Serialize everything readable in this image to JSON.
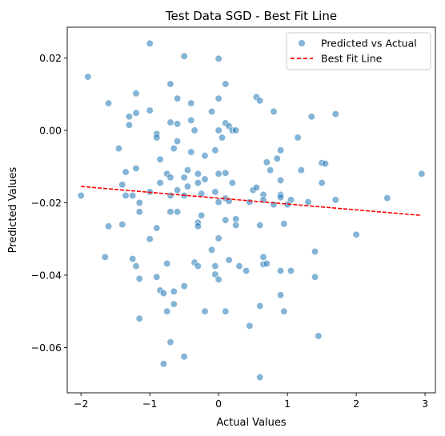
{
  "chart_data": {
    "type": "scatter",
    "title": "Test Data SGD - Best Fit Line",
    "xlabel": "Actual Values",
    "ylabel": "Predicted Values",
    "xlim": [
      -2.2,
      3.15
    ],
    "ylim": [
      -0.0725,
      0.0285
    ],
    "x_ticks": [
      -2,
      -1,
      0,
      1,
      2,
      3
    ],
    "x_tick_labels": [
      "−2",
      "−1",
      "0",
      "1",
      "2",
      "3"
    ],
    "y_ticks": [
      -0.06,
      -0.04,
      -0.02,
      0.0,
      0.02
    ],
    "y_tick_labels": [
      "−0.06",
      "−0.04",
      "−0.02",
      "0.00",
      "0.02"
    ],
    "grid": false,
    "legend_position": "top-right",
    "colors": {
      "scatter": "#1f77b4",
      "scatter_edge": "#ffffff",
      "line": "#ff0000"
    },
    "series": [
      {
        "name": "Predicted vs Actual",
        "kind": "scatter",
        "points": [
          [
            -1.0,
            0.024
          ],
          [
            -0.5,
            0.0205
          ],
          [
            0.0,
            0.0198
          ],
          [
            -1.9,
            0.0148
          ],
          [
            0.1,
            0.0128
          ],
          [
            -0.7,
            0.0128
          ],
          [
            -1.2,
            0.0102
          ],
          [
            -0.6,
            0.0088
          ],
          [
            0.0,
            0.0088
          ],
          [
            0.55,
            0.0092
          ],
          [
            0.6,
            0.0082
          ],
          [
            -1.6,
            0.0075
          ],
          [
            -0.4,
            0.0075
          ],
          [
            -0.1,
            0.0052
          ],
          [
            0.8,
            0.0052
          ],
          [
            1.35,
            0.0038
          ],
          [
            1.7,
            0.0045
          ],
          [
            -1.0,
            0.0055
          ],
          [
            -1.2,
            0.0048
          ],
          [
            -1.3,
            0.0038
          ],
          [
            -0.4,
            0.0028
          ],
          [
            -0.7,
            0.0022
          ],
          [
            -0.6,
            0.0018
          ],
          [
            0.1,
            0.002
          ],
          [
            0.15,
            0.0012
          ],
          [
            -1.3,
            0.0015
          ],
          [
            -0.35,
            0.0
          ],
          [
            0.0,
            0.0
          ],
          [
            0.2,
            0.0
          ],
          [
            0.25,
            0.0
          ],
          [
            -0.9,
            -0.001
          ],
          [
            -0.9,
            -0.002
          ],
          [
            -0.6,
            -0.003
          ],
          [
            -0.65,
            -0.005
          ],
          [
            0.05,
            -0.002
          ],
          [
            1.15,
            -0.002
          ],
          [
            -1.45,
            -0.005
          ],
          [
            -0.05,
            -0.0055
          ],
          [
            -0.2,
            -0.007
          ],
          [
            -0.4,
            -0.006
          ],
          [
            0.9,
            -0.0055
          ],
          [
            0.85,
            -0.0078
          ],
          [
            -0.85,
            -0.008
          ],
          [
            0.7,
            -0.0088
          ],
          [
            -1.2,
            -0.0105
          ],
          [
            -0.75,
            -0.012
          ],
          [
            0.75,
            -0.011
          ],
          [
            1.2,
            -0.011
          ],
          [
            1.5,
            -0.009
          ],
          [
            1.55,
            -0.0092
          ],
          [
            -1.35,
            -0.0115
          ],
          [
            -0.45,
            -0.011
          ],
          [
            -0.5,
            -0.013
          ],
          [
            -0.3,
            -0.012
          ],
          [
            -0.2,
            -0.0135
          ],
          [
            0.0,
            -0.012
          ],
          [
            0.1,
            -0.0118
          ],
          [
            -0.7,
            -0.013
          ],
          [
            0.9,
            -0.0138
          ],
          [
            -1.4,
            -0.015
          ],
          [
            -1.35,
            -0.018
          ],
          [
            -1.25,
            -0.018
          ],
          [
            -1.15,
            -0.02
          ],
          [
            -1.0,
            -0.017
          ],
          [
            -0.85,
            -0.0145
          ],
          [
            -0.45,
            -0.0155
          ],
          [
            -0.3,
            -0.0145
          ],
          [
            0.2,
            -0.0145
          ],
          [
            0.5,
            -0.0165
          ],
          [
            0.55,
            -0.0158
          ],
          [
            1.5,
            -0.0145
          ],
          [
            -0.7,
            -0.018
          ],
          [
            -0.6,
            -0.0165
          ],
          [
            -0.5,
            -0.018
          ],
          [
            -0.25,
            -0.0175
          ],
          [
            -0.05,
            -0.017
          ],
          [
            0.1,
            -0.0188
          ],
          [
            0.65,
            -0.0178
          ],
          [
            0.9,
            -0.0178
          ],
          [
            0.9,
            -0.0185
          ],
          [
            0.65,
            -0.0192
          ],
          [
            0.0,
            -0.0198
          ],
          [
            0.15,
            -0.0195
          ],
          [
            0.45,
            -0.0198
          ],
          [
            1.05,
            -0.0192
          ],
          [
            1.3,
            -0.0198
          ],
          [
            1.7,
            -0.0192
          ],
          [
            2.45,
            -0.0187
          ],
          [
            2.95,
            -0.012
          ],
          [
            0.8,
            -0.0205
          ],
          [
            1.0,
            -0.0205
          ],
          [
            -1.15,
            -0.0225
          ],
          [
            -0.7,
            -0.0225
          ],
          [
            -0.6,
            -0.0225
          ],
          [
            -0.25,
            -0.0235
          ],
          [
            0.25,
            -0.0245
          ],
          [
            0.1,
            -0.0248
          ],
          [
            0.25,
            -0.0262
          ],
          [
            0.6,
            -0.0262
          ],
          [
            0.95,
            -0.0258
          ],
          [
            -1.6,
            -0.0265
          ],
          [
            -1.4,
            -0.026
          ],
          [
            -0.3,
            -0.0255
          ],
          [
            -0.3,
            -0.0265
          ],
          [
            -0.9,
            -0.027
          ],
          [
            -1.0,
            -0.03
          ],
          [
            -0.1,
            -0.033
          ],
          [
            0.0,
            -0.0298
          ],
          [
            -1.65,
            -0.035
          ],
          [
            -1.25,
            -0.0355
          ],
          [
            -1.2,
            -0.0375
          ],
          [
            -0.75,
            -0.0368
          ],
          [
            -0.35,
            -0.0365
          ],
          [
            -0.3,
            -0.0375
          ],
          [
            -0.05,
            -0.0375
          ],
          [
            0.15,
            -0.0358
          ],
          [
            0.3,
            -0.0375
          ],
          [
            0.65,
            -0.035
          ],
          [
            0.65,
            -0.037
          ],
          [
            0.7,
            -0.0368
          ],
          [
            1.4,
            -0.0335
          ],
          [
            -0.9,
            -0.0405
          ],
          [
            -1.15,
            -0.041
          ],
          [
            -0.05,
            -0.0398
          ],
          [
            0.4,
            -0.0388
          ],
          [
            0.9,
            -0.0388
          ],
          [
            1.05,
            -0.0388
          ],
          [
            1.4,
            -0.0405
          ],
          [
            0.0,
            -0.0412
          ],
          [
            -0.5,
            -0.043
          ],
          [
            -0.85,
            -0.0442
          ],
          [
            -0.8,
            -0.045
          ],
          [
            -0.65,
            -0.0445
          ],
          [
            0.9,
            -0.0455
          ],
          [
            -0.65,
            -0.048
          ],
          [
            -1.15,
            -0.052
          ],
          [
            -0.75,
            -0.05
          ],
          [
            -0.2,
            -0.05
          ],
          [
            0.1,
            -0.05
          ],
          [
            0.95,
            -0.05
          ],
          [
            0.6,
            -0.0485
          ],
          [
            0.45,
            -0.054
          ],
          [
            1.45,
            -0.0568
          ],
          [
            -0.7,
            -0.0585
          ],
          [
            -0.5,
            -0.0625
          ],
          [
            -0.8,
            -0.0645
          ],
          [
            0.6,
            -0.0682
          ],
          [
            2.0,
            -0.0288
          ],
          [
            -2.0,
            -0.018
          ]
        ]
      },
      {
        "name": "Best Fit Line",
        "kind": "line",
        "dashed": true,
        "points": [
          [
            -2.0,
            -0.0155
          ],
          [
            2.95,
            -0.0235
          ]
        ]
      }
    ]
  }
}
